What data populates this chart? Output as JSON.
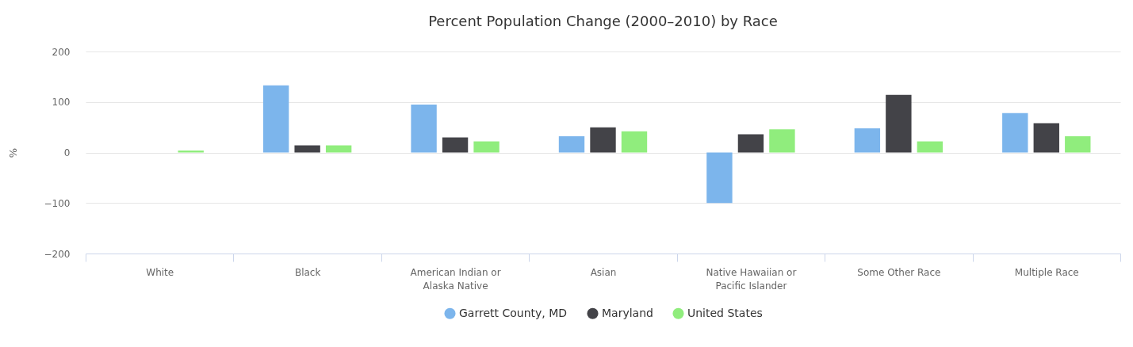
{
  "chart_data": {
    "type": "bar",
    "title": "Percent Population Change (2000–2010) by Race",
    "ylabel": "%",
    "categories": [
      "White",
      "Black",
      "American Indian or Alaska Native",
      "Asian",
      "Native Hawaiian or Pacific Islander",
      "Some Other Race",
      "Multiple Race"
    ],
    "series": [
      {
        "name": "Garrett County, MD",
        "color": "#7cb5ec",
        "values": [
          null,
          133,
          95,
          32,
          -100,
          48,
          78
        ]
      },
      {
        "name": "Maryland",
        "color": "#434348",
        "values": [
          null,
          14,
          30,
          50,
          36,
          114,
          58
        ]
      },
      {
        "name": "United States",
        "color": "#90ed7d",
        "values": [
          4,
          14,
          22,
          42,
          46,
          22,
          32
        ]
      }
    ],
    "ylim": [
      -200,
      200
    ],
    "yticks": [
      -200,
      -100,
      0,
      100,
      200
    ],
    "grid": "y",
    "legend": "bottom"
  }
}
